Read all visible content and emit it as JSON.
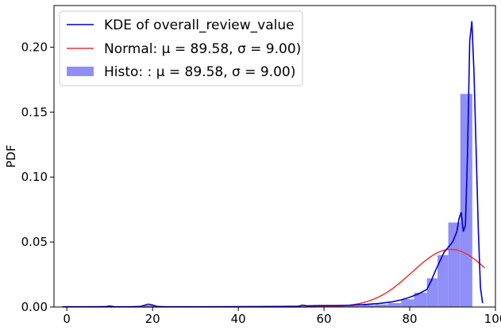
{
  "chart_data": {
    "type": "histogram",
    "ylabel": "PDF",
    "xlabel": "",
    "xlim": [
      -3,
      100
    ],
    "ylim": [
      0,
      0.232
    ],
    "xticks": [
      "0",
      "20",
      "40",
      "60",
      "80",
      "100"
    ],
    "xtick_values": [
      0,
      20,
      40,
      60,
      80,
      100
    ],
    "yticks": [
      "0.00",
      "0.05",
      "0.10",
      "0.15",
      "0.20"
    ],
    "ytick_values": [
      0,
      0.05,
      0.1,
      0.15,
      0.2
    ],
    "grid": false,
    "legend_position": "top-left",
    "legend": [
      {
        "label": "KDE of overall_review_value",
        "kind": "line",
        "color": "#0000cc"
      },
      {
        "label": "Normal: μ = 89.58, σ = 9.00)",
        "kind": "line",
        "color": "#ee3333"
      },
      {
        "label": "Histo: : μ = 89.58, σ = 9.00)",
        "kind": "patch",
        "color": "#8f8ff7"
      }
    ],
    "histogram": {
      "name": "Histo: : μ = 89.58, σ = 9.00)",
      "color": "#8f8ff7",
      "bins": [
        {
          "x0": 0,
          "x1": 3,
          "value": 0.0004
        },
        {
          "x0": 18,
          "x1": 21,
          "value": 0.0012
        },
        {
          "x0": 54,
          "x1": 57,
          "value": 0.0004
        },
        {
          "x0": 57,
          "x1": 60,
          "value": 0.0004
        },
        {
          "x0": 60,
          "x1": 63,
          "value": 0.0006
        },
        {
          "x0": 63,
          "x1": 66,
          "value": 0.0008
        },
        {
          "x0": 66,
          "x1": 69,
          "value": 0.001
        },
        {
          "x0": 69,
          "x1": 72,
          "value": 0.0015
        },
        {
          "x0": 72,
          "x1": 75,
          "value": 0.002
        },
        {
          "x0": 75,
          "x1": 78,
          "value": 0.003
        },
        {
          "x0": 78,
          "x1": 81,
          "value": 0.006
        },
        {
          "x0": 81,
          "x1": 84,
          "value": 0.011
        },
        {
          "x0": 84,
          "x1": 86.5,
          "value": 0.022
        },
        {
          "x0": 86.5,
          "x1": 89,
          "value": 0.04
        },
        {
          "x0": 89,
          "x1": 91.8,
          "value": 0.065
        },
        {
          "x0": 91.8,
          "x1": 94.6,
          "value": 0.164
        }
      ]
    },
    "normal": {
      "name": "Normal: μ = 89.58, σ = 9.00)",
      "color": "#ee3333",
      "mu": 89.58,
      "sigma": 9.0,
      "x_range": [
        -1,
        97.5
      ]
    },
    "kde": {
      "name": "KDE of overall_review_value",
      "color": "#0000cc",
      "x": [
        -1,
        5,
        9,
        10,
        11,
        15,
        17,
        18,
        19,
        20,
        21,
        23,
        30,
        40,
        50,
        54,
        55,
        56,
        58,
        60,
        63,
        66,
        70,
        73,
        76,
        78,
        80,
        82,
        84,
        85,
        86,
        87,
        88,
        89,
        90,
        91,
        91.5,
        92,
        92.5,
        93,
        93.5,
        94,
        94.5,
        95,
        95.5,
        96,
        96.5,
        97
      ],
      "y": [
        0.0002,
        0.0002,
        0.0003,
        0.0007,
        0.0003,
        0.0002,
        0.0004,
        0.0012,
        0.0022,
        0.0015,
        0.0004,
        0.0002,
        0.0002,
        0.0003,
        0.0004,
        0.0006,
        0.0014,
        0.0009,
        0.001,
        0.0011,
        0.0011,
        0.0013,
        0.002,
        0.0028,
        0.004,
        0.0055,
        0.0075,
        0.01,
        0.0135,
        0.02,
        0.028,
        0.035,
        0.042,
        0.046,
        0.05,
        0.058,
        0.068,
        0.073,
        0.058,
        0.063,
        0.12,
        0.205,
        0.22,
        0.18,
        0.12,
        0.06,
        0.015,
        0.003
      ]
    }
  }
}
